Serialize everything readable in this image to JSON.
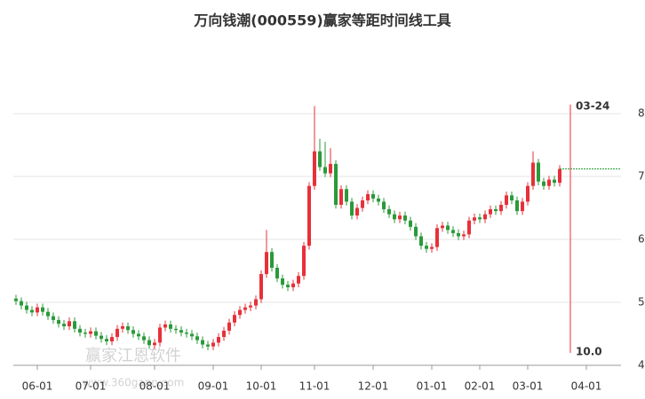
{
  "chart_data": {
    "type": "candlestick",
    "title": "万向钱潮(000559)赢家等距时间线工具",
    "watermark": [
      "赢家江恩软件",
      "www.360gann.com"
    ],
    "up_color": "#e8303a",
    "down_color": "#2a9a3a",
    "grid": true,
    "xlim": [
      -0.5,
      113.5
    ],
    "xticks": [
      {
        "value": 4,
        "label": "06-01"
      },
      {
        "value": 14,
        "label": "07-01"
      },
      {
        "value": 26,
        "label": "08-01"
      },
      {
        "value": 37,
        "label": "09-01"
      },
      {
        "value": 46,
        "label": "10-01"
      },
      {
        "value": 56,
        "label": "11-01"
      },
      {
        "value": 67,
        "label": "12-01"
      },
      {
        "value": 78,
        "label": "01-01"
      },
      {
        "value": 87,
        "label": "02-01"
      },
      {
        "value": 96,
        "label": "03-01"
      },
      {
        "value": 107,
        "label": "04-01"
      }
    ],
    "ylim": [
      4,
      9.1
    ],
    "yticks": [
      4,
      5,
      6,
      7,
      8
    ],
    "time_line": {
      "x": 104,
      "label": "03-24",
      "bottom_label": "10.0",
      "color": "#e8303a"
    },
    "open": [
      5.06,
      5.02,
      4.95,
      4.88,
      4.84,
      4.92,
      4.85,
      4.78,
      4.72,
      4.66,
      4.62,
      4.7,
      4.58,
      4.52,
      4.5,
      4.54,
      4.47,
      4.42,
      4.38,
      4.45,
      4.58,
      4.62,
      4.56,
      4.5,
      4.46,
      4.4,
      4.32,
      4.36,
      4.6,
      4.65,
      4.58,
      4.56,
      4.52,
      4.5,
      4.46,
      4.4,
      4.33,
      4.3,
      4.36,
      4.45,
      4.55,
      4.68,
      4.8,
      4.88,
      4.92,
      4.95,
      5.05,
      5.45,
      5.8,
      5.55,
      5.38,
      5.28,
      5.24,
      5.3,
      5.42,
      5.9,
      6.85,
      7.4,
      7.15,
      7.05,
      7.2,
      6.55,
      6.8,
      6.6,
      6.38,
      6.5,
      6.62,
      6.72,
      6.65,
      6.6,
      6.48,
      6.4,
      6.32,
      6.38,
      6.3,
      6.2,
      6.05,
      5.9,
      5.85,
      5.88,
      6.18,
      6.22,
      6.15,
      6.1,
      6.05,
      6.08,
      6.3,
      6.35,
      6.32,
      6.4,
      6.48,
      6.45,
      6.55,
      6.7,
      6.62,
      6.45,
      6.6,
      6.85,
      7.22,
      6.92,
      6.85,
      6.95,
      6.9
    ],
    "high": [
      5.12,
      5.08,
      5.01,
      4.94,
      4.98,
      4.98,
      4.91,
      4.84,
      4.78,
      4.72,
      4.76,
      4.76,
      4.64,
      4.58,
      4.6,
      4.6,
      4.53,
      4.48,
      4.51,
      4.64,
      4.68,
      4.68,
      4.62,
      4.56,
      4.52,
      4.46,
      4.42,
      4.66,
      4.71,
      4.71,
      4.64,
      4.62,
      4.58,
      4.56,
      4.52,
      4.46,
      4.39,
      4.42,
      4.51,
      4.61,
      4.74,
      4.86,
      4.94,
      4.98,
      5.01,
      5.11,
      5.51,
      6.15,
      5.86,
      5.61,
      5.44,
      5.34,
      5.36,
      5.48,
      5.96,
      6.91,
      8.12,
      7.6,
      7.55,
      7.45,
      7.26,
      6.86,
      6.86,
      6.66,
      6.56,
      6.68,
      6.78,
      6.78,
      6.71,
      6.66,
      6.54,
      6.46,
      6.44,
      6.44,
      6.36,
      6.26,
      6.11,
      5.96,
      5.94,
      6.24,
      6.28,
      6.28,
      6.21,
      6.16,
      6.14,
      6.36,
      6.41,
      6.41,
      6.46,
      6.54,
      6.54,
      6.61,
      6.76,
      6.76,
      6.68,
      6.66,
      6.91,
      7.4,
      7.28,
      6.98,
      7.01,
      7.01,
      7.18
    ],
    "low": [
      4.96,
      4.89,
      4.82,
      4.78,
      4.78,
      4.79,
      4.72,
      4.66,
      4.6,
      4.56,
      4.56,
      4.52,
      4.46,
      4.44,
      4.44,
      4.41,
      4.36,
      4.32,
      4.32,
      4.39,
      4.52,
      4.5,
      4.44,
      4.4,
      4.34,
      4.26,
      4.26,
      4.3,
      4.54,
      4.52,
      4.5,
      4.46,
      4.44,
      4.4,
      4.34,
      4.27,
      4.24,
      4.24,
      4.3,
      4.39,
      4.49,
      4.62,
      4.74,
      4.82,
      4.86,
      4.89,
      4.99,
      5.39,
      5.49,
      5.32,
      5.22,
      5.18,
      5.18,
      5.24,
      5.36,
      5.84,
      6.79,
      7.09,
      6.99,
      6.99,
      6.49,
      6.49,
      6.54,
      6.32,
      6.32,
      6.44,
      6.56,
      6.59,
      6.54,
      6.42,
      6.34,
      6.26,
      6.26,
      6.24,
      6.14,
      5.99,
      5.84,
      5.79,
      5.79,
      5.82,
      6.12,
      6.09,
      6.04,
      5.99,
      5.99,
      6.02,
      6.24,
      6.26,
      6.26,
      6.34,
      6.39,
      6.39,
      6.49,
      6.56,
      6.39,
      6.39,
      6.54,
      6.79,
      6.86,
      6.79,
      6.79,
      6.84,
      6.84
    ],
    "close": [
      5.02,
      4.95,
      4.88,
      4.84,
      4.92,
      4.85,
      4.78,
      4.72,
      4.66,
      4.62,
      4.7,
      4.58,
      4.52,
      4.5,
      4.54,
      4.47,
      4.42,
      4.38,
      4.45,
      4.58,
      4.62,
      4.56,
      4.5,
      4.46,
      4.4,
      4.32,
      4.36,
      4.6,
      4.65,
      4.58,
      4.56,
      4.52,
      4.5,
      4.46,
      4.4,
      4.33,
      4.3,
      4.36,
      4.45,
      4.55,
      4.68,
      4.8,
      4.88,
      4.92,
      4.95,
      5.05,
      5.45,
      5.8,
      5.55,
      5.38,
      5.28,
      5.24,
      5.3,
      5.42,
      5.9,
      6.85,
      7.4,
      7.15,
      7.05,
      7.2,
      6.55,
      6.8,
      6.6,
      6.38,
      6.5,
      6.62,
      6.72,
      6.65,
      6.6,
      6.48,
      6.4,
      6.32,
      6.38,
      6.3,
      6.2,
      6.05,
      5.9,
      5.85,
      5.88,
      6.18,
      6.22,
      6.15,
      6.1,
      6.05,
      6.08,
      6.3,
      6.35,
      6.32,
      6.4,
      6.48,
      6.45,
      6.55,
      6.7,
      6.62,
      6.45,
      6.6,
      6.85,
      7.22,
      6.92,
      6.85,
      6.95,
      6.9,
      7.12
    ]
  }
}
